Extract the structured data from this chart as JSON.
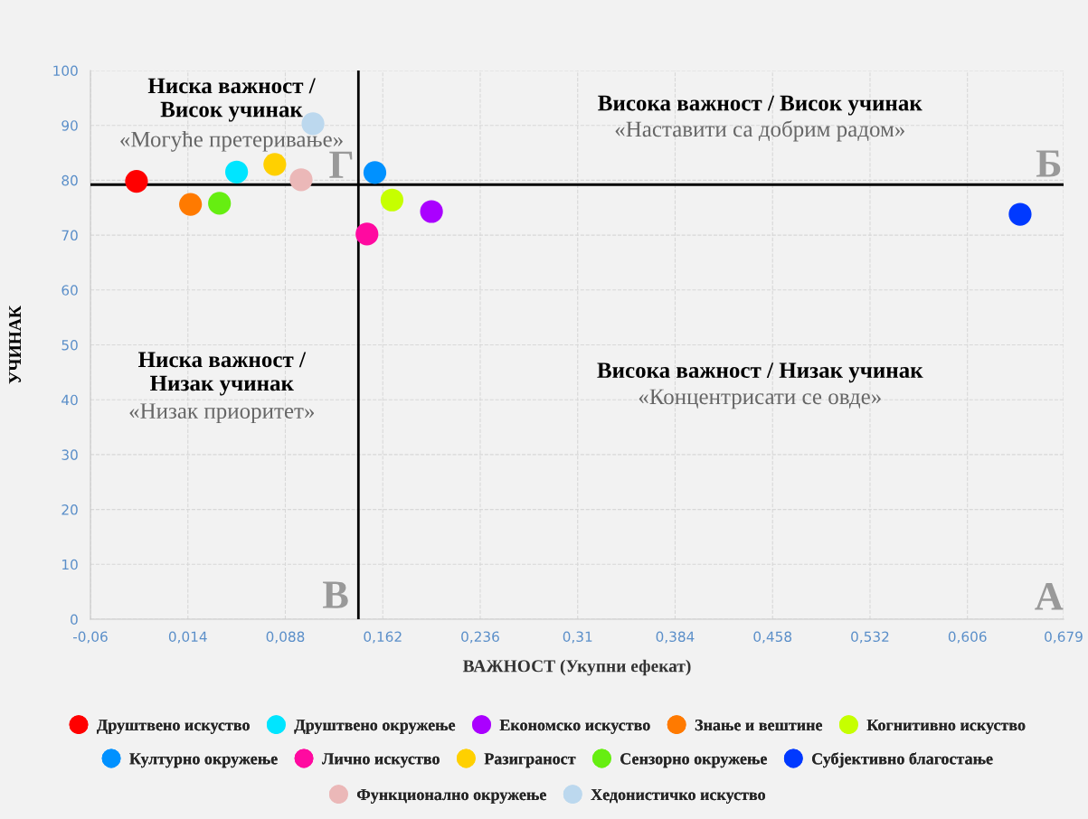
{
  "chart_data": {
    "type": "scatter",
    "xlabel": "ВАЖНОСТ (Укупни ефекат)",
    "ylabel": "УЧИНАК",
    "xlim": [
      -0.06,
      0.679
    ],
    "ylim": [
      0,
      100
    ],
    "xticks": [
      {
        "value": -0.06,
        "label": "-0,06"
      },
      {
        "value": 0.014,
        "label": "0,014"
      },
      {
        "value": 0.088,
        "label": "0,088"
      },
      {
        "value": 0.162,
        "label": "0,162"
      },
      {
        "value": 0.236,
        "label": "0,236"
      },
      {
        "value": 0.31,
        "label": "0,31"
      },
      {
        "value": 0.384,
        "label": "0,384"
      },
      {
        "value": 0.458,
        "label": "0,458"
      },
      {
        "value": 0.532,
        "label": "0,532"
      },
      {
        "value": 0.606,
        "label": "0,606"
      },
      {
        "value": 0.679,
        "label": "0,679"
      }
    ],
    "yticks": [
      0,
      10,
      20,
      30,
      40,
      50,
      60,
      70,
      80,
      90,
      100
    ],
    "grid": true,
    "legend": "bottom",
    "marker": "circle",
    "series": [
      {
        "name": "Друштвено искуство",
        "color": "#ff0000",
        "x": [
          -0.025
        ],
        "values": [
          79.8
        ]
      },
      {
        "name": "Друштвено окружење",
        "color": "#00e5ff",
        "x": [
          0.051
        ],
        "values": [
          81.5
        ]
      },
      {
        "name": "Економско искуство",
        "color": "#aa00ff",
        "x": [
          0.199
        ],
        "values": [
          74.3
        ]
      },
      {
        "name": "Знање и вештине",
        "color": "#ff7a00",
        "x": [
          0.016
        ],
        "values": [
          75.6
        ]
      },
      {
        "name": "Когнитивно искуство",
        "color": "#c6ff00",
        "x": [
          0.169
        ],
        "values": [
          76.4
        ]
      },
      {
        "name": "Културно окружење",
        "color": "#0091ff",
        "x": [
          0.156
        ],
        "values": [
          81.4
        ]
      },
      {
        "name": "Лично искуство",
        "color": "#ff0aa0",
        "x": [
          0.15
        ],
        "values": [
          70.2
        ]
      },
      {
        "name": "Разиграност",
        "color": "#ffd000",
        "x": [
          0.08
        ],
        "values": [
          82.9
        ]
      },
      {
        "name": "Сензорно окружење",
        "color": "#66ee11",
        "x": [
          0.038
        ],
        "values": [
          75.8
        ]
      },
      {
        "name": "Субјективно благостање",
        "color": "#0039ff",
        "x": [
          0.646
        ],
        "values": [
          73.8
        ]
      },
      {
        "name": "Функционално окружење",
        "color": "#ebb8b8",
        "x": [
          0.1
        ],
        "values": [
          80.1
        ]
      },
      {
        "name": "Хедонистичко искуство",
        "color": "#bcd8ee",
        "x": [
          0.109
        ],
        "values": [
          90.3
        ]
      }
    ],
    "ref_lines": [
      {
        "axis": "x",
        "value": 0.1435,
        "color": "#000000"
      },
      {
        "axis": "y",
        "value": 79.2,
        "color": "#000000"
      }
    ],
    "annotations": [
      "Ниска важност /\nВисок учинак",
      "«Могуће претеривање»",
      "Висока важност / Висок учинак",
      "«Наставити са добрим радом»",
      "Ниска важност /\nНизак учинак",
      "«Низак приоритет»",
      "Висока важност / Низак учинак",
      "«Концентрисати се овде»",
      "Г",
      "Б",
      "В",
      "А"
    ]
  }
}
